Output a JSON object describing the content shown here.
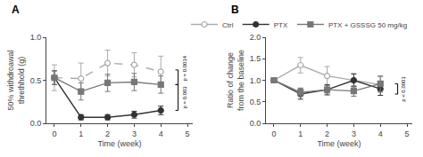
{
  "chart_data": [
    {
      "type": "line",
      "title": "A",
      "x_label": "Time (week)",
      "y_label": "50% withdroawal\nthrethhold (g)",
      "x": [
        0,
        1,
        2,
        3,
        4
      ],
      "xlim": [
        -0.3,
        5.2
      ],
      "ylim": [
        0.0,
        1.0
      ],
      "xticks": [
        0,
        1,
        2,
        3,
        4,
        5
      ],
      "yticks": [
        {
          "value": 0.0,
          "label": "0.0"
        },
        0.5,
        {
          "value": 1.0,
          "label": "1.0"
        }
      ],
      "grid": false,
      "series": [
        {
          "color": "#aaaaaa",
          "marker": "open_circle",
          "line_style": "dashed",
          "values": [
            0.53,
            0.52,
            0.7,
            0.68,
            0.6
          ],
          "error": [
            0.15,
            0.18,
            0.15,
            0.14,
            0.18
          ]
        },
        {
          "color": "#333333",
          "marker": "circle",
          "line_style": "solid",
          "values": [
            0.53,
            0.07,
            0.07,
            0.1,
            0.15
          ],
          "error": [
            0.08,
            0.03,
            0.03,
            0.04,
            0.05
          ]
        },
        {
          "color": "#777777",
          "marker": "square",
          "line_style": "solid",
          "values": [
            0.53,
            0.37,
            0.47,
            0.48,
            0.45
          ],
          "error": [
            0.08,
            0.1,
            0.1,
            0.1,
            0.1
          ]
        }
      ],
      "annotations": [
        {
          "text": "p = 0.003",
          "x": 4.65,
          "y_from": 0.15,
          "y_to": 0.45
        },
        {
          "text": "p = 0.0014",
          "x": 4.65,
          "y_from": 0.45,
          "y_to": 0.62
        }
      ]
    },
    {
      "type": "line",
      "title": "B",
      "x_label": "Time (week)",
      "y_label": "Ratio of change\nfrom the baseline",
      "x": [
        0,
        1,
        2,
        3,
        4
      ],
      "xlim": [
        -0.3,
        5.2
      ],
      "ylim": [
        0.0,
        2.0
      ],
      "xticks": [
        0,
        1,
        2,
        3,
        4,
        5
      ],
      "yticks": [
        {
          "value": 0.0,
          "label": "0.0"
        },
        0.5,
        {
          "value": 1.0,
          "label": "1.0"
        },
        1.5,
        {
          "value": 2.0,
          "label": "2.0"
        }
      ],
      "grid": false,
      "legend": "top",
      "series": [
        {
          "name": "Ctrl",
          "color": "#aaaaaa",
          "marker": "open_circle",
          "line_style": "solid",
          "values": [
            1.0,
            1.35,
            1.1,
            1.0,
            0.9
          ],
          "error": [
            0.05,
            0.18,
            0.22,
            0.15,
            0.18
          ]
        },
        {
          "name": "PTX",
          "color": "#333333",
          "marker": "circle",
          "line_style": "solid",
          "values": [
            1.0,
            0.68,
            0.78,
            1.0,
            0.8
          ],
          "error": [
            0.05,
            0.12,
            0.12,
            0.15,
            0.15
          ]
        },
        {
          "name": "PTX + GSSSG 50 mg/kg",
          "color": "#777777",
          "marker": "square",
          "line_style": "solid",
          "values": [
            1.0,
            0.72,
            0.78,
            0.75,
            0.92
          ],
          "error": [
            0.05,
            0.1,
            0.1,
            0.12,
            0.18
          ]
        }
      ],
      "annotations": [
        {
          "text": "p < 0.0001",
          "x": 4.65,
          "y_from": 0.68,
          "y_to": 0.92
        }
      ]
    }
  ]
}
